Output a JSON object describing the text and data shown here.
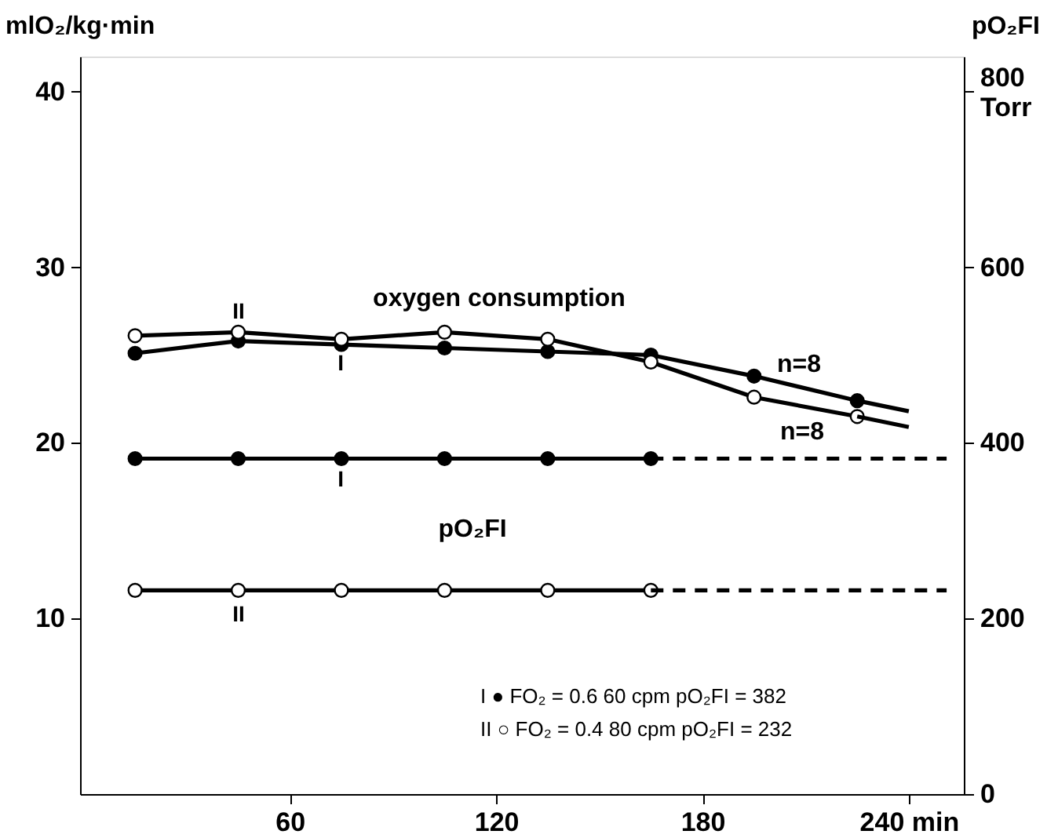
{
  "chart_data": {
    "type": "line",
    "xlim": [
      -1,
      256
    ],
    "xticks": [
      60,
      120,
      180,
      {
        "value": 240,
        "label": "240 min"
      }
    ],
    "ylim": [
      0,
      42
    ],
    "yticks": [
      10,
      20,
      30,
      40
    ],
    "ylabel": "mlO₂/kg·min",
    "y2lim": [
      0,
      840
    ],
    "y2ticks": [
      0,
      200,
      400,
      600,
      {
        "value": 800,
        "label": "800\nTorr"
      }
    ],
    "y2label": "pO₂FI",
    "grid": false,
    "marker": "circle",
    "series": [
      {
        "color": "#000000",
        "x": [
          15,
          45,
          75,
          105,
          135,
          165,
          195,
          225
        ],
        "values": [
          25.1,
          25.8,
          25.6,
          25.4,
          25.2,
          25.0,
          23.8,
          22.4
        ]
      },
      {
        "color": "#000000",
        "marker": "none",
        "x": [
          15,
          45,
          75,
          105,
          135,
          165,
          195,
          225
        ],
        "values": [
          26.1,
          26.3,
          25.9,
          26.3,
          25.9,
          24.6,
          22.6,
          21.5
        ]
      },
      {
        "type": "scatter",
        "color": "#ffffff",
        "x": [
          15,
          45,
          75,
          105,
          135,
          165,
          195,
          225
        ],
        "values": [
          26.1,
          26.3,
          25.9,
          26.3,
          25.9,
          24.6,
          22.6,
          21.5
        ]
      },
      {
        "color": "#000000",
        "marker": "none",
        "x": [
          225,
          240
        ],
        "values": [
          22.4,
          21.8
        ]
      },
      {
        "color": "#000000",
        "marker": "none",
        "x": [
          225,
          240
        ],
        "values": [
          21.5,
          20.9
        ]
      },
      {
        "color": "#000000",
        "axis": "y2",
        "x": [
          15,
          45,
          75,
          105,
          135,
          165
        ],
        "values": [
          382,
          382,
          382,
          382,
          382,
          382
        ]
      },
      {
        "color": "#000000",
        "axis": "y2",
        "marker": "none",
        "x": [
          15,
          45,
          75,
          105,
          135,
          165
        ],
        "values": [
          232,
          232,
          232,
          232,
          232,
          232
        ]
      },
      {
        "type": "scatter",
        "color": "#ffffff",
        "axis": "y2",
        "x": [
          15,
          45,
          75,
          105,
          135,
          165
        ],
        "values": [
          232,
          232,
          232,
          232,
          232,
          232
        ]
      },
      {
        "color": "#000000",
        "axis": "y2",
        "marker": "none",
        "line_style": "dashed",
        "x": [
          165,
          251
        ],
        "values": [
          382,
          382
        ]
      },
      {
        "color": "#000000",
        "axis": "y2",
        "marker": "none",
        "line_style": "dashed",
        "x": [
          165,
          251
        ],
        "values": [
          232,
          232
        ]
      }
    ],
    "annotations": [
      "oxygen consumption",
      "n=8",
      "n=8",
      "II",
      "I",
      "I",
      "II",
      "pO₂FI",
      "I ● FO₂ = 0.6    60 cpm    pO₂FI = 382",
      "II ○ FO₂ = 0.4    80 cpm    pO₂FI = 232"
    ]
  }
}
